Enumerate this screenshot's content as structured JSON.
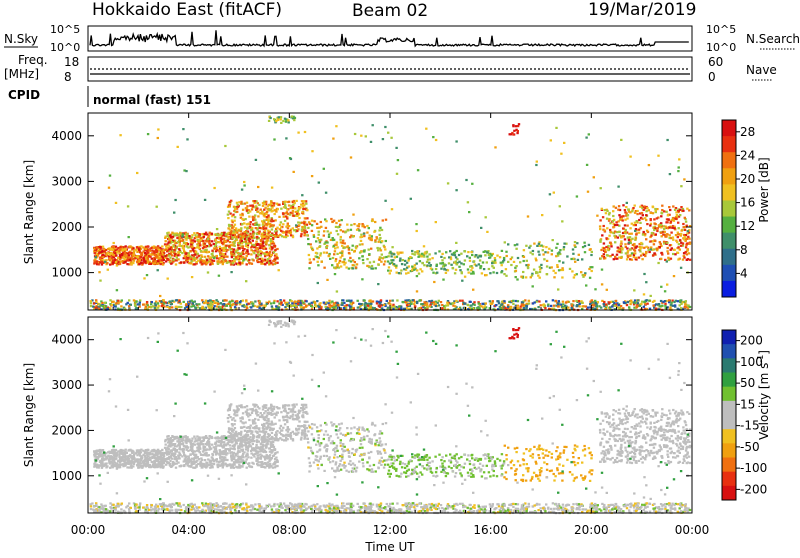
{
  "header": {
    "radar": "Hokkaido East (fitACF)",
    "beam": "Beam 02",
    "date": "19/Mar/2019"
  },
  "panels": {
    "nsky_label": "N.Sky",
    "nsearch_label": "N.Search",
    "freq_label": "Freq.",
    "freq_unit": "[MHz]",
    "nave_label": "Nave",
    "cpid_label": "CPID",
    "cpid_value": "normal (fast) 151",
    "noise_ticks": [
      "10^5",
      "10^0"
    ],
    "freq_ticks": [
      "18",
      "8"
    ],
    "nave_ticks": [
      "60",
      "0"
    ]
  },
  "chart_data": [
    {
      "type": "heatmap",
      "title": "",
      "ylabel": "Slant Range [km]",
      "xlabel": "",
      "x_ticks": [
        "00:00",
        "04:00",
        "08:00",
        "12:00",
        "16:00",
        "20:00",
        "00:00"
      ],
      "y_ticks": [
        1000,
        2000,
        3000,
        4000
      ],
      "ylim": [
        180,
        4500
      ],
      "colorbar": {
        "label": "Power [dB]",
        "ticks": [
          4,
          8,
          12,
          16,
          20,
          24,
          28
        ],
        "range": [
          0,
          30
        ],
        "colors": [
          "#0a1ee0",
          "#1f4fb4",
          "#2f6f8a",
          "#3f8f6a",
          "#55b040",
          "#a8c83a",
          "#f0c020",
          "#f0a010",
          "#f07010",
          "#e83010",
          "#d81010"
        ]
      }
    },
    {
      "type": "heatmap",
      "title": "",
      "ylabel": "Slant Range [km]",
      "xlabel": "Time UT",
      "x_ticks": [
        "00:00",
        "04:00",
        "08:00",
        "12:00",
        "16:00",
        "20:00",
        "00:00"
      ],
      "y_ticks": [
        1000,
        2000,
        3000,
        4000
      ],
      "ylim": [
        180,
        4500
      ],
      "colorbar": {
        "label": "Velocity [m s^-1]",
        "ticks": [
          200,
          100,
          50,
          15,
          -15,
          -50,
          -100,
          -200
        ],
        "colors": [
          "#1020b0",
          "#2050b0",
          "#2a7a70",
          "#30a040",
          "#70c030",
          "#bebebe",
          "#bebebe",
          "#f0c020",
          "#f0a010",
          "#f07010",
          "#e83010",
          "#d81010"
        ]
      }
    }
  ]
}
